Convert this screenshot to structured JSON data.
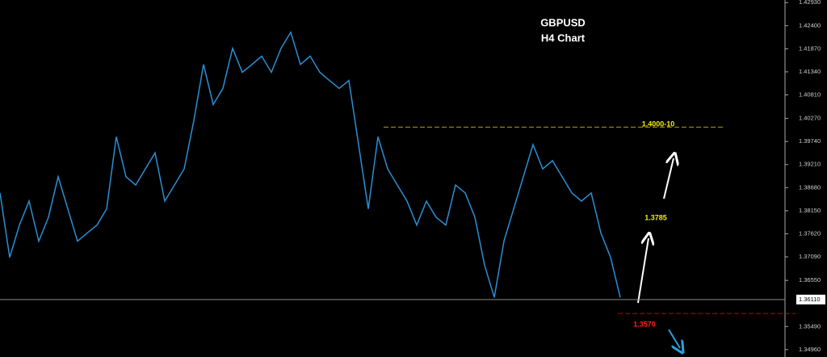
{
  "chart_data": {
    "type": "line",
    "title": "GBPUSD",
    "subtitle": "H4 Chart",
    "categories": [
      null,
      null,
      null,
      null,
      null,
      null,
      null,
      null,
      null,
      null,
      null,
      null,
      null,
      null,
      null,
      null,
      null,
      null,
      null,
      null,
      null,
      null,
      null,
      null,
      null,
      null,
      null,
      null,
      null,
      null,
      null,
      null,
      null,
      null,
      null,
      null,
      null,
      null,
      null,
      null,
      null,
      null,
      null,
      null,
      null,
      null,
      null,
      null,
      null,
      null,
      null,
      null,
      null,
      null,
      null,
      null,
      null,
      null,
      null,
      null,
      null,
      null,
      null,
      null,
      null
    ],
    "series": [
      {
        "color": "#2a8fd4",
        "values": [
          1.3856,
          1.3708,
          1.3782,
          1.3837,
          1.3745,
          1.38,
          1.3893,
          1.3819,
          1.3745,
          1.3764,
          1.3782,
          1.3819,
          1.3985,
          1.3893,
          1.3874,
          1.3911,
          1.3948,
          1.3837,
          1.3874,
          1.3911,
          1.4022,
          1.4151,
          1.4059,
          1.4096,
          1.4188,
          1.4133,
          1.4151,
          1.417,
          1.4133,
          1.4188,
          1.4225,
          1.4151,
          1.417,
          1.4133,
          1.4114,
          1.4096,
          1.4114,
          1.3967,
          1.3819,
          1.3985,
          1.3911,
          1.3874,
          1.3837,
          1.3782,
          1.3837,
          1.38,
          1.3782,
          1.3874,
          1.3856,
          1.38,
          1.369,
          1.3616,
          1.3745,
          1.3819,
          1.3893,
          1.3967,
          1.3911,
          1.393,
          1.3893,
          1.3856,
          1.3837,
          1.3856,
          1.3764,
          1.3708,
          1.3616
        ]
      }
    ],
    "ylim": [
      1.3479,
      1.4299
    ],
    "yticks": [
      {
        "value": 1.4293,
        "label": "1.42930"
      },
      {
        "value": 1.424,
        "label": "1.42400"
      },
      {
        "value": 1.4187,
        "label": "1.41870"
      },
      {
        "value": 1.4134,
        "label": "1.41340"
      },
      {
        "value": 1.4081,
        "label": "1.40810"
      },
      {
        "value": 1.4027,
        "label": "1.40270"
      },
      {
        "value": 1.3974,
        "label": "1.39740"
      },
      {
        "value": 1.3921,
        "label": "1.39210"
      },
      {
        "value": 1.3868,
        "label": "1.38680"
      },
      {
        "value": 1.3815,
        "label": "1.38150"
      },
      {
        "value": 1.3762,
        "label": "1.37620"
      },
      {
        "value": 1.3709,
        "label": "1.37090"
      },
      {
        "value": 1.3655,
        "label": "1.36550"
      },
      {
        "value": 1.3549,
        "label": "1.35490"
      },
      {
        "value": 1.3496,
        "label": "1.34960"
      }
    ],
    "current_price": {
      "value": 1.3611,
      "label": "1.36110"
    },
    "levels": [
      {
        "value": 1.4007,
        "color": "#b89c00"
      },
      {
        "value": 1.3579,
        "color": "#c00000"
      }
    ],
    "annotations": [
      {
        "text": "1.4000-10",
        "color": "#f0f000"
      },
      {
        "text": "1.3785",
        "color": "#f0f000"
      },
      {
        "text": "1.3570",
        "color": "#ff2020"
      }
    ]
  }
}
